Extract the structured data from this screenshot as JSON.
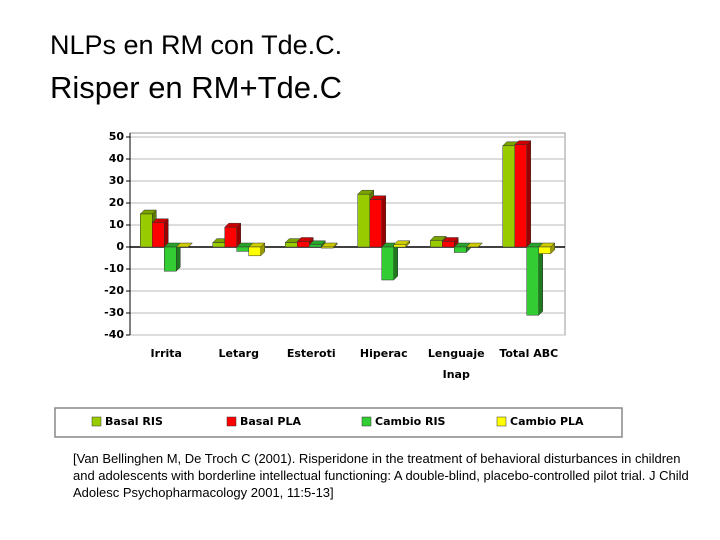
{
  "header": {
    "line1": "NLPs en RM con Tde.C.",
    "line2": "Risper en RM+Tde.C"
  },
  "citation": "[Van Bellinghen M, De Troch C (2001). Risperidone in the treatment of behavioral disturbances in children and adolescents with borderline intellectual functioning: A double-blind, placebo-controlled pilot trial. J Child Adolesc Psychopharmacology 2001, 11:5-13]",
  "chart_data": {
    "type": "bar",
    "categories": [
      "Irrita",
      "Letarg",
      "Esteroti",
      "Hiperac",
      "Lenguaje Inap",
      "Total ABC"
    ],
    "series": [
      {
        "name": "Basal RIS",
        "color": "#99cc00",
        "values": [
          15,
          2,
          2,
          24,
          3,
          46
        ]
      },
      {
        "name": "Basal PLA",
        "color": "#ff0000",
        "values": [
          11,
          9,
          2.5,
          21.5,
          2.5,
          46.5
        ]
      },
      {
        "name": "Cambio RIS",
        "color": "#33cc33",
        "values": [
          -11,
          -2,
          1,
          -15,
          -2.5,
          -31
        ]
      },
      {
        "name": "Cambio PLA",
        "color": "#ffff00",
        "values": [
          0,
          -4,
          -0.5,
          1,
          0,
          -3
        ]
      }
    ],
    "ylim": [
      -40,
      50
    ],
    "yticks": [
      -40,
      -30,
      -20,
      -10,
      0,
      10,
      20,
      30,
      40,
      50
    ],
    "grid": true,
    "legend": "bottom"
  }
}
